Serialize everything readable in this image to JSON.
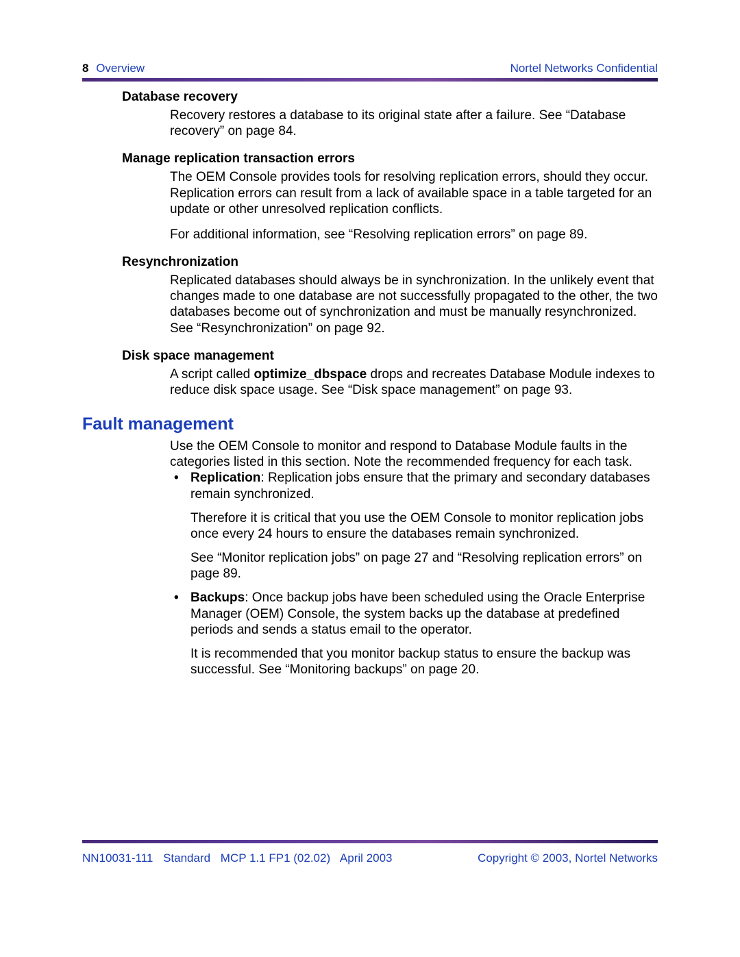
{
  "colors": {
    "link_blue": "#1a3db8",
    "bar_gradient_start": "#4a2a7a",
    "bar_gradient_end": "#2a1a5a",
    "text": "#000000",
    "background": "#ffffff"
  },
  "typography": {
    "body_fontsize_pt": 14,
    "heading_fontsize_pt": 19,
    "subheading_fontsize_pt": 14,
    "font_family": "Arial"
  },
  "header": {
    "page_number": "8",
    "section": "Overview",
    "confidential": "Nortel Networks Confidential"
  },
  "sections": {
    "database_recovery": {
      "heading": "Database recovery",
      "body": "Recovery restores a database to its original state after a failure. See “Database recovery” on page 84."
    },
    "manage_replication": {
      "heading": "Manage replication transaction errors",
      "body1": "The OEM Console provides tools for resolving replication errors, should they occur. Replication errors can result from a lack of available space in a table targeted for an update or other unresolved replication conflicts.",
      "body2": "For additional information, see “Resolving replication errors” on page 89."
    },
    "resync": {
      "heading": "Resynchronization",
      "body": "Replicated databases should always be in synchronization. In the unlikely event that changes made to one database are not successfully propagated to the other, the two databases become out of synchronization and must be manually resynchronized. See “Resynchronization” on page 92."
    },
    "disk_space": {
      "heading": "Disk space management",
      "body_pre": "A script called ",
      "body_bold": "optimize_dbspace",
      "body_post": " drops and recreates Database Module indexes to reduce disk space usage. See “Disk space management” on page 93."
    },
    "fault_mgmt": {
      "heading": "Fault management",
      "intro": "Use the OEM Console to monitor and respond to Database Module faults in the categories listed in this section. Note the recommended frequency for each task.",
      "bullets": {
        "replication": {
          "label": "Replication",
          "p1_post": ": Replication jobs ensure that the primary and secondary databases remain synchronized.",
          "p2": "Therefore it is critical that you use the OEM Console to monitor replication jobs once every 24 hours to ensure the databases remain synchronized.",
          "p3": "See “Monitor replication jobs” on page 27 and “Resolving replication errors” on page 89."
        },
        "backups": {
          "label": "Backups",
          "p1_post": ": Once backup jobs have been scheduled using the Oracle Enterprise Manager (OEM) Console, the system backs up the database at predefined periods and sends a status email to the operator.",
          "p2": "It is recommended that you monitor backup status to ensure the backup was successful. See “Monitoring backups” on page 20."
        }
      }
    }
  },
  "footer": {
    "doc_id": "NN10031-111",
    "standard": "Standard",
    "version": "MCP 1.1 FP1 (02.02)",
    "date": "April 2003",
    "copyright": "Copyright © 2003, Nortel Networks"
  }
}
